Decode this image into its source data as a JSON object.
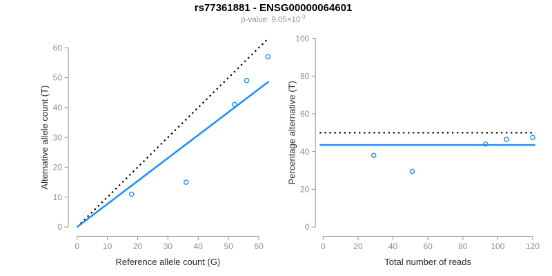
{
  "header": {
    "title": "rs77361881 - ENSG00000064601",
    "p_value_text": "p-value: 9.05×10",
    "p_value_exponent": "-3"
  },
  "colors": {
    "accent_blue": "#1E90FF",
    "reference_line_black": "#000000",
    "axis_line": "#A3A3A3",
    "tick_label": "#8C8C8C",
    "axis_title": "#2B2B2B",
    "subtitle_gray": "#949494",
    "background": "#FFFFFF"
  },
  "chart_data": [
    {
      "type": "scatter",
      "panel": "allele-counts",
      "xlabel": "Reference allele count (G)",
      "ylabel": "Alternative allele count (T)",
      "xlim": [
        0,
        63.5
      ],
      "ylim": [
        0,
        63.5
      ],
      "xticks": [
        0,
        10,
        20,
        30,
        40,
        50,
        60
      ],
      "yticks": [
        0,
        10,
        20,
        30,
        40,
        50,
        60
      ],
      "grid": false,
      "legend": false,
      "points": [
        [
          18,
          11
        ],
        [
          36,
          15
        ],
        [
          52,
          41
        ],
        [
          56,
          49
        ],
        [
          63,
          57
        ]
      ],
      "lines": [
        {
          "name": "identity-line",
          "style": "dotted",
          "color": "#000000",
          "from": [
            0,
            0
          ],
          "to": [
            63.2,
            63.2
          ]
        },
        {
          "name": "fit-line",
          "style": "solid",
          "color": "#1E90FF",
          "from": [
            0,
            0
          ],
          "to": [
            63.3,
            48.7
          ]
        }
      ]
    },
    {
      "type": "scatter",
      "panel": "percentage-alternative",
      "xlabel": "Total number of reads",
      "ylabel": "Percentage alternative (T)",
      "xlim": [
        0,
        125
      ],
      "ylim": [
        0,
        104
      ],
      "xticks": [
        0,
        20,
        40,
        60,
        80,
        100,
        120
      ],
      "yticks": [
        0,
        20,
        40,
        60,
        80,
        100
      ],
      "grid": false,
      "legend": false,
      "points": [
        [
          29,
          38
        ],
        [
          51,
          29.5
        ],
        [
          93,
          44
        ],
        [
          105,
          46.5
        ],
        [
          120,
          47.5
        ]
      ],
      "lines": [
        {
          "name": "null-50pct-line",
          "style": "dotted",
          "color": "#000000",
          "from": [
            -2,
            50
          ],
          "to": [
            121.5,
            50
          ]
        },
        {
          "name": "mean-pct-line",
          "style": "solid",
          "color": "#1E90FF",
          "from": [
            -2,
            43.5
          ],
          "to": [
            121.5,
            43.5
          ]
        }
      ]
    }
  ]
}
